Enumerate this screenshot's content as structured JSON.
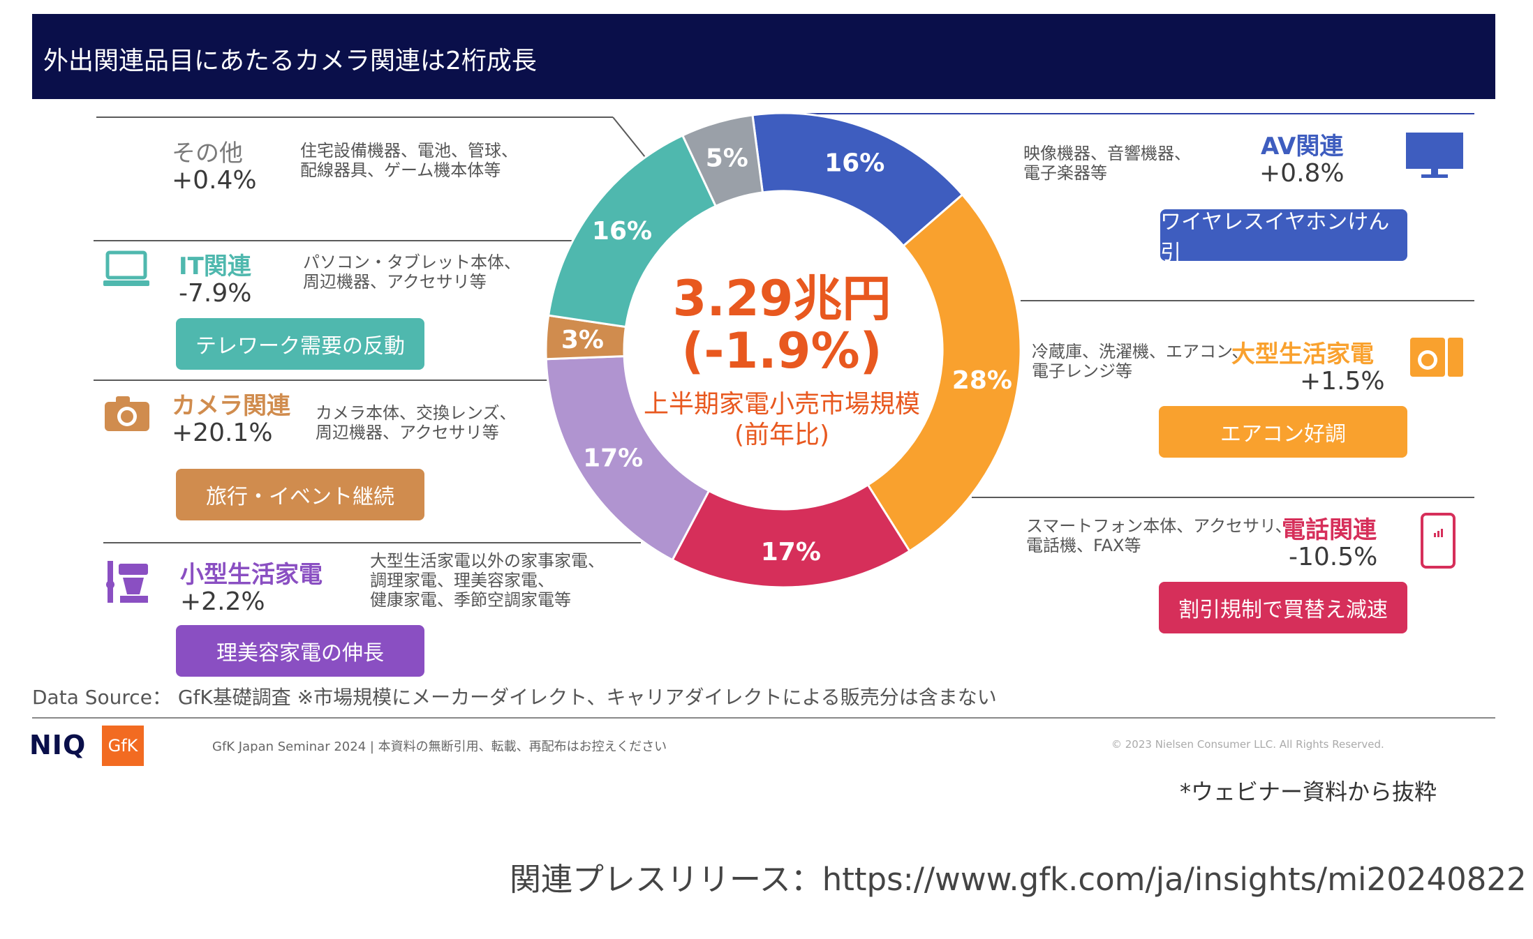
{
  "header": {
    "title": "外出関連品目にあたるカメラ関連は2桁成長"
  },
  "center": {
    "value": "3.29兆円",
    "change": "(-1.9%)",
    "label": "上半期家電小売市場規模",
    "sublabel": "(前年比)"
  },
  "chart_data": {
    "type": "pie",
    "title": "",
    "slices": [
      {
        "label": "16%",
        "value": 16,
        "color": "#3e5dbf"
      },
      {
        "label": "28%",
        "value": 28,
        "color": "#f9a12e"
      },
      {
        "label": "17%",
        "value": 17,
        "color": "#d62f5a"
      },
      {
        "label": "17%",
        "value": 17,
        "color": "#b094d0"
      },
      {
        "label": "3%",
        "value": 3,
        "color": "#d08c4e"
      },
      {
        "label": "16%",
        "value": 16,
        "color": "#4fb8ae"
      },
      {
        "label": "5%",
        "value": 5,
        "color": "#9aa0a8"
      }
    ]
  },
  "categories": {
    "other": {
      "name": "その他",
      "change": "+0.4%",
      "desc": "住宅設備機器、電池、管球、\n配線器具、ゲーム機本体等",
      "color": "#7a7a7a"
    },
    "it": {
      "name": "IT関連",
      "change": "-7.9%",
      "desc": "パソコン・タブレット本体、\n周辺機器、アクセサリ等",
      "pill": "テレワーク需要の反動",
      "color": "#4fb8ae"
    },
    "camera": {
      "name": "カメラ関連",
      "change": "+20.1%",
      "desc": "カメラ本体、交換レンズ、\n周辺機器、アクセサリ等",
      "pill": "旅行・イベント継続",
      "color": "#d08c4e"
    },
    "small": {
      "name": "小型生活家電",
      "change": "+2.2%",
      "desc": "大型生活家電以外の家事家電、\n調理家電、理美容家電、\n健康家電、季節空調家電等",
      "pill": "理美容家電の伸長",
      "color": "#8a4fc2"
    },
    "av": {
      "name": "AV関連",
      "change": "+0.8%",
      "desc": "映像機器、音響機器、\n電子楽器等",
      "pill": "ワイヤレスイヤホンけん引",
      "color": "#3e5dbf"
    },
    "large": {
      "name": "大型生活家電",
      "change": "+1.5%",
      "desc": "冷蔵庫、洗濯機、エアコン、\n電子レンジ等",
      "pill": "エアコン好調",
      "color": "#f9a12e"
    },
    "phone": {
      "name": "電話関連",
      "change": "-10.5%",
      "desc": "スマートフォン本体、アクセサリ、\n電話機、FAX等",
      "pill": "割引規制で買替え減速",
      "color": "#d62f5a"
    }
  },
  "footer": {
    "source": "Data Source： GfK基礎調査 ※市場規模にメーカーダイレクト、キャリアダイレクトによる販売分は含まない",
    "niq": "NIQ",
    "gfk": "GfK",
    "seminar": "GfK Japan Seminar 2024 | 本資料の無断引用、転載、再配布はお控えください",
    "copyright": "© 2023 Nielsen Consumer LLC. All Rights Reserved.",
    "webinar_note": "*ウェビナー資料から抜粋",
    "press": "関連プレスリリース：https://www.gfk.com/ja/insights/mi20240822"
  }
}
